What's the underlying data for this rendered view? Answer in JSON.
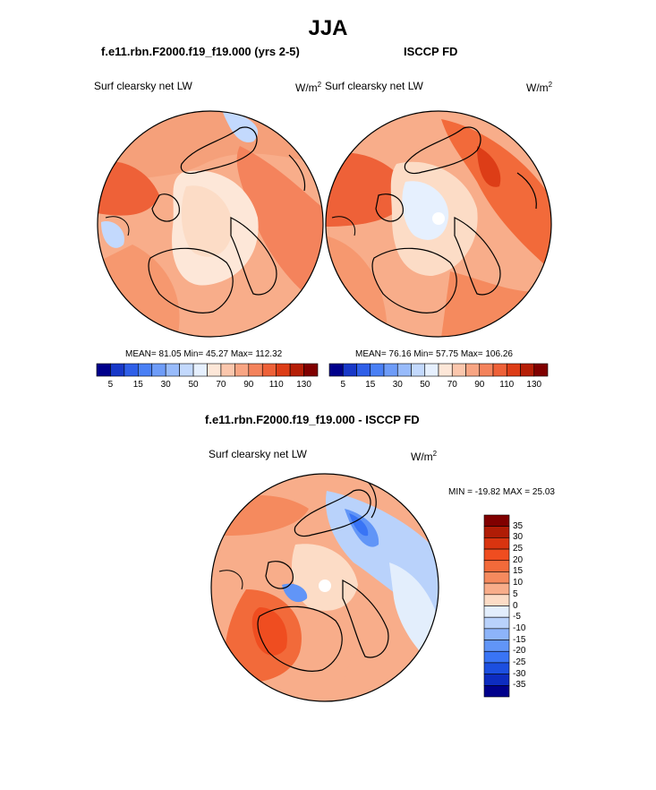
{
  "figure": {
    "title": "JJA"
  },
  "panels": [
    {
      "id": "model",
      "title": "f.e11.rbn.F2000.f19_f19.000 (yrs 2-5)",
      "var_label": "Surf clearsky net LW",
      "units_base": "W/m",
      "units_exp": "2",
      "stats_text": "MEAN=  81.05  Min=  45.27  Max= 112.32",
      "mean": 81.05,
      "min": 45.27,
      "max": 112.32
    },
    {
      "id": "obs",
      "title": "ISCCP FD",
      "var_label": "Surf clearsky net LW",
      "units_base": "W/m",
      "units_exp": "2",
      "stats_text": "MEAN=  76.16  Min=  57.75  Max= 106.26",
      "mean": 76.16,
      "min": 57.75,
      "max": 106.26
    },
    {
      "id": "diff",
      "title": "f.e11.rbn.F2000.f19_f19.000 - ISCCP FD",
      "var_label": "Surf clearsky net LW",
      "units_base": "W/m",
      "units_exp": "2",
      "stats_text": "MIN = -19.82 MAX =  25.03",
      "min": -19.82,
      "max": 25.03
    }
  ],
  "chart_data": [
    {
      "type": "heatmap",
      "projection": "north-polar-stereographic",
      "title": "f.e11.rbn.F2000.f19_f19.000 (yrs 2-5)",
      "variable": "Surf clearsky net LW",
      "units": "W/m2",
      "colorbar": {
        "orientation": "horizontal",
        "levels": [
          5,
          10,
          15,
          20,
          30,
          40,
          50,
          60,
          70,
          80,
          90,
          100,
          110,
          120,
          130
        ],
        "tick_labels": [
          "5",
          "15",
          "30",
          "50",
          "70",
          "90",
          "110",
          "130"
        ],
        "colors": [
          "#00008b",
          "#1838c8",
          "#2f5fe8",
          "#4a80f5",
          "#6e9cf8",
          "#98bbfb",
          "#c3d9fd",
          "#e6f0fe",
          "#fde7d8",
          "#fbc7ad",
          "#f8a583",
          "#f4835c",
          "#ee6138",
          "#dd3d17",
          "#b61f07",
          "#800000"
        ]
      }
    },
    {
      "type": "heatmap",
      "projection": "north-polar-stereographic",
      "title": "ISCCP FD",
      "variable": "Surf clearsky net LW",
      "units": "W/m2",
      "colorbar": {
        "orientation": "horizontal",
        "levels": [
          5,
          10,
          15,
          20,
          30,
          40,
          50,
          60,
          70,
          80,
          90,
          100,
          110,
          120,
          130
        ],
        "tick_labels": [
          "5",
          "15",
          "30",
          "50",
          "70",
          "90",
          "110",
          "130"
        ],
        "colors": [
          "#00008b",
          "#1838c8",
          "#2f5fe8",
          "#4a80f5",
          "#6e9cf8",
          "#98bbfb",
          "#c3d9fd",
          "#e6f0fe",
          "#fde7d8",
          "#fbc7ad",
          "#f8a583",
          "#f4835c",
          "#ee6138",
          "#dd3d17",
          "#b61f07",
          "#800000"
        ]
      }
    },
    {
      "type": "heatmap",
      "projection": "north-polar-stereographic",
      "title": "f.e11.rbn.F2000.f19_f19.000 - ISCCP FD",
      "variable": "Surf clearsky net LW",
      "units": "W/m2",
      "colorbar": {
        "orientation": "vertical",
        "levels": [
          35,
          30,
          25,
          20,
          15,
          10,
          5,
          0,
          -5,
          -10,
          -15,
          -20,
          -25,
          -30,
          -35
        ],
        "tick_labels": [
          "35",
          "30",
          "25",
          "20",
          "15",
          "10",
          "5",
          "0",
          "-5",
          "-10",
          "-15",
          "-20",
          "-25",
          "-30",
          "-35"
        ],
        "colors": [
          "#800000",
          "#b01c06",
          "#d93410",
          "#ef4d20",
          "#f26a3a",
          "#f58a5e",
          "#f8ad8a",
          "#fcdcc6",
          "#e3eefc",
          "#b9d2fb",
          "#8db4f9",
          "#6195f7",
          "#3974f5",
          "#1c4fe0",
          "#0d2cc0",
          "#00008b"
        ]
      }
    }
  ]
}
